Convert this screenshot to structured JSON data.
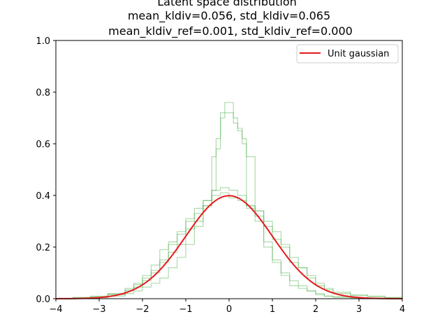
{
  "chart_data": {
    "type": "line",
    "title_lines": [
      "Latent space distribution",
      "mean_kldiv=0.056, std_kldiv=0.065",
      "mean_kldiv_ref=0.001, std_kldiv_ref=0.000"
    ],
    "xlabel": "",
    "ylabel": "",
    "xlim": [
      -4,
      4
    ],
    "ylim": [
      0,
      1.0
    ],
    "x_ticks": [
      -4,
      -3,
      -2,
      -1,
      0,
      1,
      2,
      3,
      4
    ],
    "x_tick_labels": [
      "−4",
      "−3",
      "−2",
      "−1",
      "0",
      "1",
      "2",
      "3",
      "4"
    ],
    "y_ticks": [
      0.0,
      0.2,
      0.4,
      0.6,
      0.8,
      1.0
    ],
    "y_tick_labels": [
      "0.0",
      "0.2",
      "0.4",
      "0.6",
      "0.8",
      "1.0"
    ],
    "grid": false,
    "legend": {
      "position": "upper right",
      "entries": [
        "Unit gaussian"
      ]
    },
    "series": [
      {
        "name": "Unit gaussian",
        "kind": "line",
        "color": "#e41a1c",
        "function": "standard_normal_pdf",
        "x_range": [
          -4,
          4
        ]
      },
      {
        "kind": "step-histogram",
        "color": "#4daf4a",
        "opacity": 0.45,
        "x": [
          -4.0,
          -3.6,
          -3.2,
          -2.8,
          -2.4,
          -2.2,
          -2.0,
          -1.8,
          -1.6,
          -1.4,
          -1.2,
          -1.0,
          -0.8,
          -0.6,
          -0.4,
          -0.3,
          -0.2,
          -0.1,
          0.0,
          0.1,
          0.2,
          0.3,
          0.4,
          0.6,
          0.8,
          1.0,
          1.2,
          1.4,
          1.6,
          1.8,
          2.0,
          2.2,
          2.4,
          2.8,
          3.2,
          3.6,
          4.0
        ],
        "y": [
          0.0,
          0.002,
          0.005,
          0.015,
          0.03,
          0.045,
          0.07,
          0.1,
          0.14,
          0.18,
          0.21,
          0.27,
          0.3,
          0.36,
          0.42,
          0.58,
          0.72,
          0.76,
          0.76,
          0.7,
          0.65,
          0.6,
          0.55,
          0.34,
          0.22,
          0.15,
          0.1,
          0.07,
          0.05,
          0.03,
          0.02,
          0.01,
          0.008,
          0.004,
          0.002,
          0.0,
          0.0
        ]
      },
      {
        "kind": "step-histogram",
        "color": "#4daf4a",
        "opacity": 0.45,
        "x": [
          -4.0,
          -3.6,
          -3.2,
          -2.8,
          -2.4,
          -2.2,
          -2.0,
          -1.8,
          -1.6,
          -1.4,
          -1.2,
          -1.0,
          -0.8,
          -0.6,
          -0.4,
          -0.3,
          -0.2,
          -0.1,
          0.0,
          0.1,
          0.2,
          0.3,
          0.4,
          0.6,
          0.8,
          1.0,
          1.2,
          1.4,
          1.6,
          1.8,
          2.0,
          2.2,
          2.4,
          2.8,
          3.2,
          3.6,
          4.0
        ],
        "y": [
          0.0,
          0.002,
          0.004,
          0.01,
          0.02,
          0.03,
          0.045,
          0.06,
          0.08,
          0.12,
          0.16,
          0.21,
          0.28,
          0.36,
          0.55,
          0.62,
          0.7,
          0.72,
          0.72,
          0.68,
          0.66,
          0.62,
          0.36,
          0.3,
          0.2,
          0.14,
          0.09,
          0.05,
          0.04,
          0.03,
          0.015,
          0.01,
          0.005,
          0.003,
          0.001,
          0.0,
          0.0
        ]
      },
      {
        "kind": "step-histogram",
        "color": "#4daf4a",
        "opacity": 0.45,
        "x": [
          -4.0,
          -3.6,
          -3.2,
          -2.8,
          -2.4,
          -2.2,
          -2.0,
          -1.8,
          -1.6,
          -1.4,
          -1.2,
          -1.0,
          -0.8,
          -0.6,
          -0.4,
          -0.2,
          0.0,
          0.2,
          0.4,
          0.6,
          0.8,
          1.0,
          1.2,
          1.4,
          1.6,
          1.8,
          2.0,
          2.2,
          2.4,
          2.8,
          3.2,
          3.6,
          4.0
        ],
        "y": [
          0.0,
          0.005,
          0.01,
          0.02,
          0.04,
          0.06,
          0.09,
          0.13,
          0.19,
          0.21,
          0.26,
          0.3,
          0.35,
          0.38,
          0.42,
          0.43,
          0.42,
          0.4,
          0.36,
          0.34,
          0.3,
          0.26,
          0.2,
          0.14,
          0.12,
          0.09,
          0.06,
          0.04,
          0.025,
          0.015,
          0.01,
          0.005,
          0.0
        ]
      },
      {
        "kind": "step-histogram",
        "color": "#4daf4a",
        "opacity": 0.45,
        "x": [
          -4.0,
          -3.6,
          -3.2,
          -2.8,
          -2.4,
          -2.2,
          -2.0,
          -1.8,
          -1.6,
          -1.4,
          -1.2,
          -1.0,
          -0.8,
          -0.6,
          -0.4,
          -0.2,
          0.0,
          0.2,
          0.4,
          0.6,
          0.8,
          1.0,
          1.2,
          1.4,
          1.6,
          1.8,
          2.0,
          2.2,
          2.4,
          2.8,
          3.2,
          3.6,
          4.0
        ],
        "y": [
          0.0,
          0.003,
          0.008,
          0.018,
          0.035,
          0.055,
          0.08,
          0.11,
          0.15,
          0.22,
          0.25,
          0.31,
          0.33,
          0.38,
          0.4,
          0.41,
          0.39,
          0.38,
          0.35,
          0.32,
          0.28,
          0.23,
          0.21,
          0.16,
          0.12,
          0.08,
          0.05,
          0.035,
          0.02,
          0.012,
          0.008,
          0.003,
          0.0
        ]
      }
    ]
  }
}
